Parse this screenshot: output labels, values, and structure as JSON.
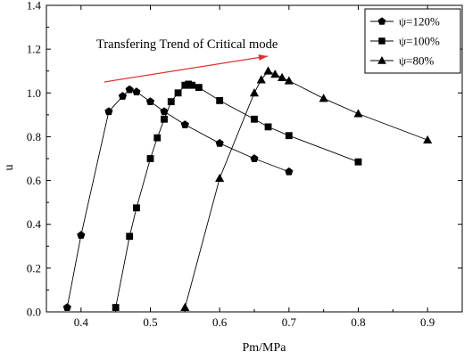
{
  "chart_data": {
    "type": "line",
    "title": "",
    "xlabel": "Pm/MPa",
    "ylabel": "u",
    "xlim": [
      0.35,
      0.95
    ],
    "ylim": [
      0.0,
      1.4
    ],
    "xticks": [
      "0.4",
      "0.5",
      "0.6",
      "0.7",
      "0.8",
      "0.9"
    ],
    "yticks": [
      "0.0",
      "0.2",
      "0.4",
      "0.6",
      "0.8",
      "1.0",
      "1.2",
      "1.4"
    ],
    "grid": false,
    "legend_position": "top-right",
    "annotation": {
      "text": "Transfering Trend of Critical mode",
      "arrow_color": "#e03030"
    },
    "series": [
      {
        "name": "ψ=120%",
        "marker": "pentagon",
        "x": [
          0.38,
          0.4,
          0.44,
          0.46,
          0.47,
          0.48,
          0.5,
          0.52,
          0.55,
          0.6,
          0.65,
          0.7
        ],
        "y": [
          0.02,
          0.35,
          0.915,
          0.985,
          1.015,
          1.005,
          0.96,
          0.915,
          0.855,
          0.77,
          0.7,
          0.64
        ]
      },
      {
        "name": "ψ=100%",
        "marker": "square",
        "x": [
          0.45,
          0.47,
          0.48,
          0.5,
          0.51,
          0.52,
          0.53,
          0.54,
          0.55,
          0.555,
          0.56,
          0.57,
          0.6,
          0.65,
          0.67,
          0.7,
          0.8
        ],
        "y": [
          0.02,
          0.345,
          0.475,
          0.7,
          0.795,
          0.88,
          0.96,
          1.0,
          1.035,
          1.04,
          1.035,
          1.025,
          0.965,
          0.88,
          0.845,
          0.805,
          0.685
        ]
      },
      {
        "name": "ψ=80%",
        "marker": "triangle",
        "x": [
          0.55,
          0.6,
          0.65,
          0.66,
          0.67,
          0.68,
          0.69,
          0.7,
          0.75,
          0.8,
          0.9
        ],
        "y": [
          0.02,
          0.61,
          1.0,
          1.06,
          1.1,
          1.085,
          1.07,
          1.055,
          0.975,
          0.905,
          0.785
        ]
      }
    ]
  }
}
